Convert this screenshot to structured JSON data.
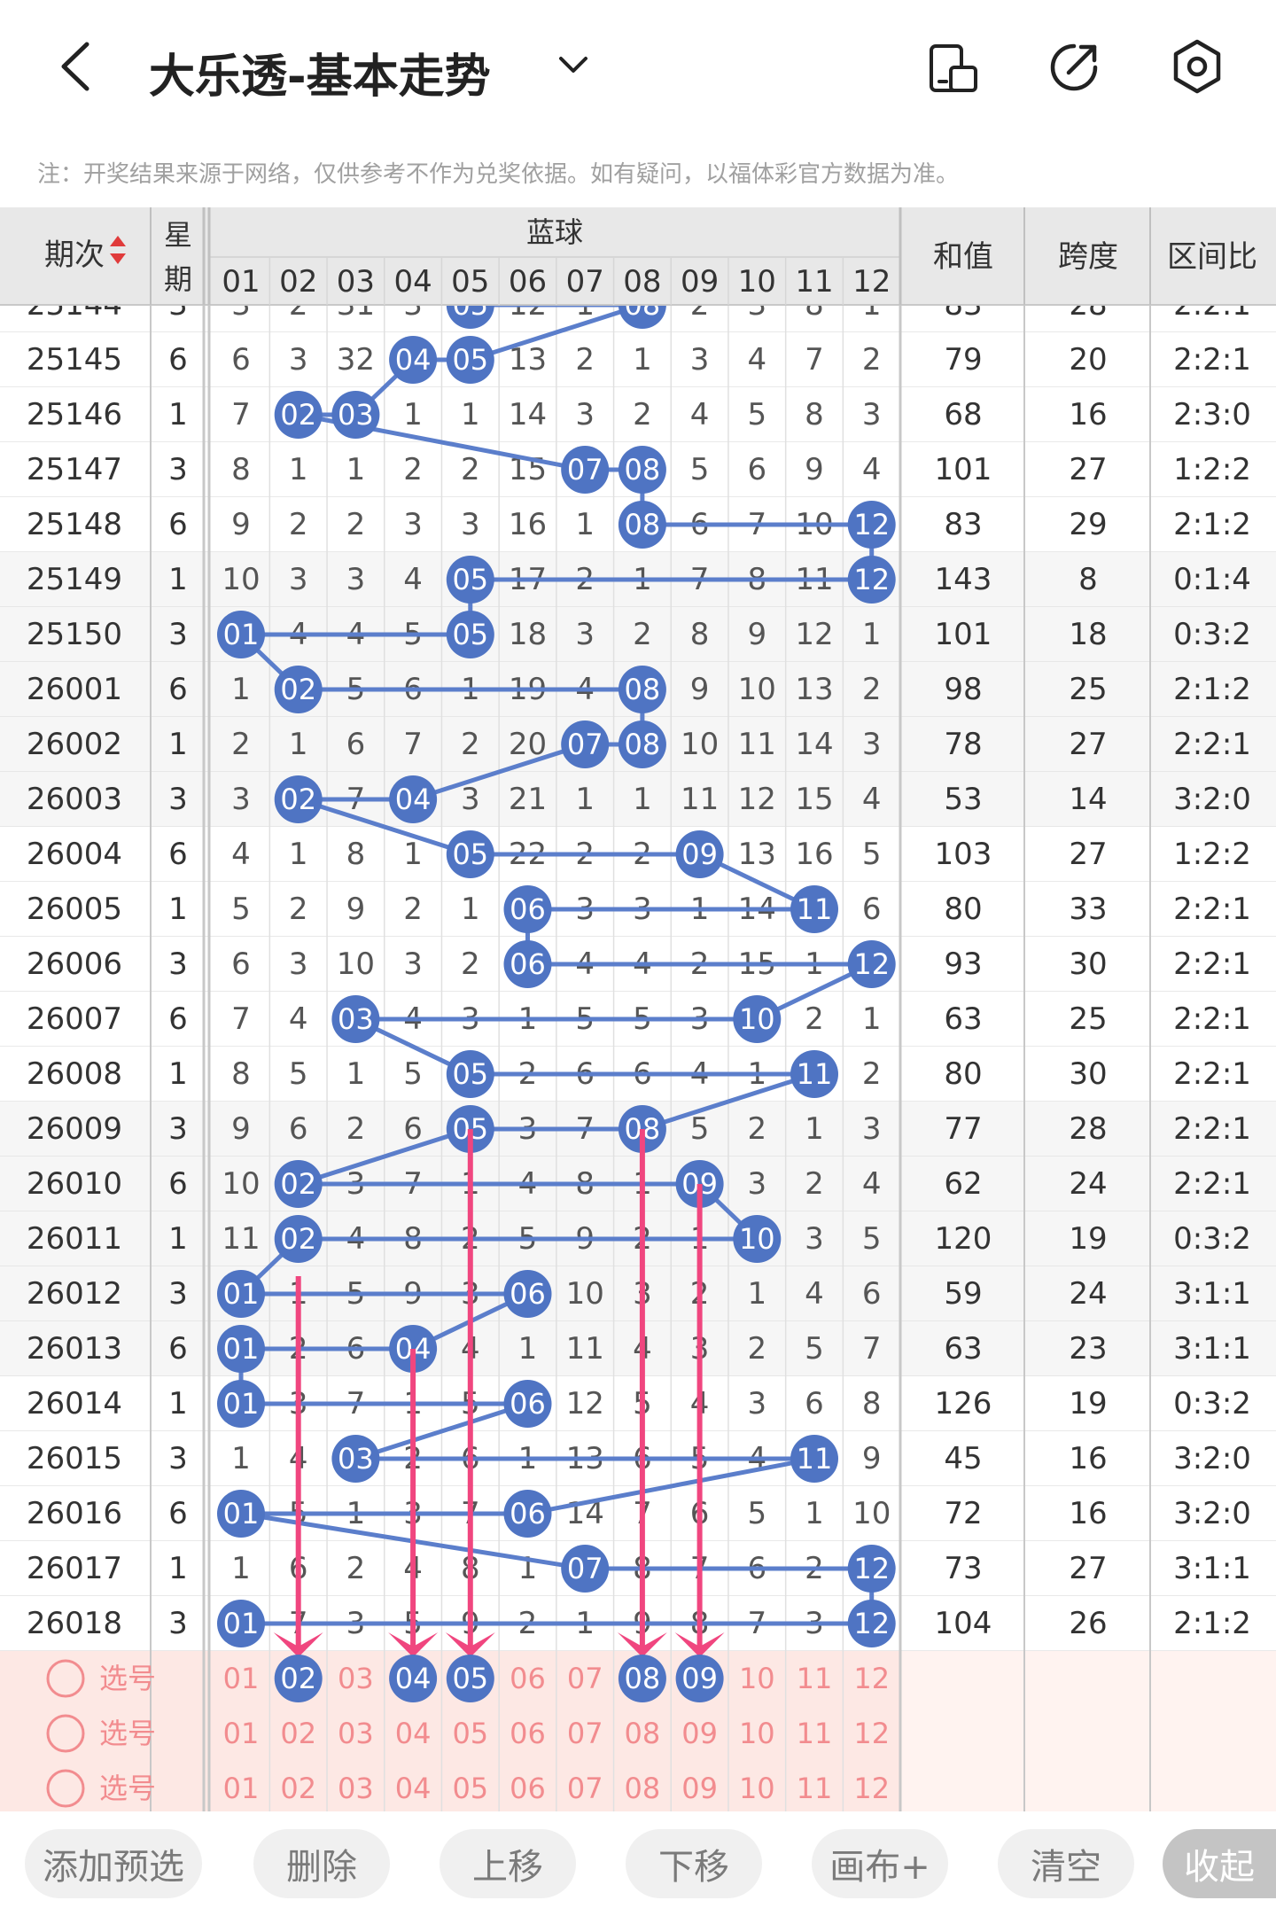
{
  "header": {
    "title": "大乐透-基本走势",
    "note": "注：开奖结果来源于网络，仅供参考不作为兑奖依据。如有疑问，以福体彩官方数据为准。"
  },
  "table": {
    "col_headers": {
      "period": "期次",
      "weekday": "星期",
      "blue_group": "蓝球",
      "sum": "和值",
      "span": "跨度",
      "ratio": "区间比"
    },
    "ball_numbers": [
      "01",
      "02",
      "03",
      "04",
      "05",
      "06",
      "07",
      "08",
      "09",
      "10",
      "11",
      "12"
    ],
    "partial_top_row": {
      "period": "25144",
      "weekday": "3",
      "cells": [
        "3",
        "2",
        "31",
        "3",
        "05",
        "12",
        "1",
        "08",
        "2",
        "3",
        "8",
        "1"
      ],
      "hits": [
        5,
        8
      ],
      "sum": "83",
      "span": "28",
      "ratio": "2:2:1"
    },
    "rows": [
      {
        "period": "25145",
        "weekday": "6",
        "cells": [
          "6",
          "3",
          "32",
          "04",
          "05",
          "13",
          "2",
          "1",
          "3",
          "4",
          "7",
          "2"
        ],
        "hits": [
          4,
          5
        ],
        "sum": "79",
        "span": "20",
        "ratio": "2:2:1"
      },
      {
        "period": "25146",
        "weekday": "1",
        "cells": [
          "7",
          "02",
          "03",
          "1",
          "1",
          "14",
          "3",
          "2",
          "4",
          "5",
          "8",
          "3"
        ],
        "hits": [
          2,
          3
        ],
        "sum": "68",
        "span": "16",
        "ratio": "2:3:0"
      },
      {
        "period": "25147",
        "weekday": "3",
        "cells": [
          "8",
          "1",
          "1",
          "2",
          "2",
          "15",
          "07",
          "08",
          "5",
          "6",
          "9",
          "4"
        ],
        "hits": [
          7,
          8
        ],
        "sum": "101",
        "span": "27",
        "ratio": "1:2:2"
      },
      {
        "period": "25148",
        "weekday": "6",
        "cells": [
          "9",
          "2",
          "2",
          "3",
          "3",
          "16",
          "1",
          "08",
          "6",
          "7",
          "10",
          "12"
        ],
        "hits": [
          8,
          12
        ],
        "sum": "83",
        "span": "29",
        "ratio": "2:1:2"
      },
      {
        "period": "25149",
        "weekday": "1",
        "cells": [
          "10",
          "3",
          "3",
          "4",
          "05",
          "17",
          "2",
          "1",
          "7",
          "8",
          "11",
          "12"
        ],
        "hits": [
          5,
          12
        ],
        "sum": "143",
        "span": "8",
        "ratio": "0:1:4"
      },
      {
        "period": "25150",
        "weekday": "3",
        "cells": [
          "01",
          "4",
          "4",
          "5",
          "05",
          "18",
          "3",
          "2",
          "8",
          "9",
          "12",
          "1"
        ],
        "hits": [
          1,
          5
        ],
        "sum": "101",
        "span": "18",
        "ratio": "0:3:2"
      },
      {
        "period": "26001",
        "weekday": "6",
        "cells": [
          "1",
          "02",
          "5",
          "6",
          "1",
          "19",
          "4",
          "08",
          "9",
          "10",
          "13",
          "2"
        ],
        "hits": [
          2,
          8
        ],
        "sum": "98",
        "span": "25",
        "ratio": "2:1:2"
      },
      {
        "period": "26002",
        "weekday": "1",
        "cells": [
          "2",
          "1",
          "6",
          "7",
          "2",
          "20",
          "07",
          "08",
          "10",
          "11",
          "14",
          "3"
        ],
        "hits": [
          7,
          8
        ],
        "sum": "78",
        "span": "27",
        "ratio": "2:2:1"
      },
      {
        "period": "26003",
        "weekday": "3",
        "cells": [
          "3",
          "02",
          "7",
          "04",
          "3",
          "21",
          "1",
          "1",
          "11",
          "12",
          "15",
          "4"
        ],
        "hits": [
          2,
          4
        ],
        "sum": "53",
        "span": "14",
        "ratio": "3:2:0"
      },
      {
        "period": "26004",
        "weekday": "6",
        "cells": [
          "4",
          "1",
          "8",
          "1",
          "05",
          "22",
          "2",
          "2",
          "09",
          "13",
          "16",
          "5"
        ],
        "hits": [
          5,
          9
        ],
        "sum": "103",
        "span": "27",
        "ratio": "1:2:2"
      },
      {
        "period": "26005",
        "weekday": "1",
        "cells": [
          "5",
          "2",
          "9",
          "2",
          "1",
          "06",
          "3",
          "3",
          "1",
          "14",
          "11",
          "6"
        ],
        "hits": [
          6,
          11
        ],
        "sum": "80",
        "span": "33",
        "ratio": "2:2:1"
      },
      {
        "period": "26006",
        "weekday": "3",
        "cells": [
          "6",
          "3",
          "10",
          "3",
          "2",
          "06",
          "4",
          "4",
          "2",
          "15",
          "1",
          "12"
        ],
        "hits": [
          6,
          12
        ],
        "sum": "93",
        "span": "30",
        "ratio": "2:2:1"
      },
      {
        "period": "26007",
        "weekday": "6",
        "cells": [
          "7",
          "4",
          "03",
          "4",
          "3",
          "1",
          "5",
          "5",
          "3",
          "10",
          "2",
          "1"
        ],
        "hits": [
          3,
          10
        ],
        "sum": "63",
        "span": "25",
        "ratio": "2:2:1"
      },
      {
        "period": "26008",
        "weekday": "1",
        "cells": [
          "8",
          "5",
          "1",
          "5",
          "05",
          "2",
          "6",
          "6",
          "4",
          "1",
          "11",
          "2"
        ],
        "hits": [
          5,
          11
        ],
        "sum": "80",
        "span": "30",
        "ratio": "2:2:1"
      },
      {
        "period": "26009",
        "weekday": "3",
        "cells": [
          "9",
          "6",
          "2",
          "6",
          "05",
          "3",
          "7",
          "08",
          "5",
          "2",
          "1",
          "3"
        ],
        "hits": [
          5,
          8
        ],
        "sum": "77",
        "span": "28",
        "ratio": "2:2:1"
      },
      {
        "period": "26010",
        "weekday": "6",
        "cells": [
          "10",
          "02",
          "3",
          "7",
          "1",
          "4",
          "8",
          "1",
          "09",
          "3",
          "2",
          "4"
        ],
        "hits": [
          2,
          9
        ],
        "sum": "62",
        "span": "24",
        "ratio": "2:2:1"
      },
      {
        "period": "26011",
        "weekday": "1",
        "cells": [
          "11",
          "02",
          "4",
          "8",
          "2",
          "5",
          "9",
          "2",
          "1",
          "10",
          "3",
          "5"
        ],
        "hits": [
          2,
          10
        ],
        "sum": "120",
        "span": "19",
        "ratio": "0:3:2"
      },
      {
        "period": "26012",
        "weekday": "3",
        "cells": [
          "01",
          "1",
          "5",
          "9",
          "3",
          "06",
          "10",
          "3",
          "2",
          "1",
          "4",
          "6"
        ],
        "hits": [
          1,
          6
        ],
        "sum": "59",
        "span": "24",
        "ratio": "3:1:1"
      },
      {
        "period": "26013",
        "weekday": "6",
        "cells": [
          "01",
          "2",
          "6",
          "04",
          "4",
          "1",
          "11",
          "4",
          "3",
          "2",
          "5",
          "7"
        ],
        "hits": [
          1,
          4
        ],
        "sum": "63",
        "span": "23",
        "ratio": "3:1:1"
      },
      {
        "period": "26014",
        "weekday": "1",
        "cells": [
          "01",
          "3",
          "7",
          "1",
          "5",
          "06",
          "12",
          "5",
          "4",
          "3",
          "6",
          "8"
        ],
        "hits": [
          1,
          6
        ],
        "sum": "126",
        "span": "19",
        "ratio": "0:3:2"
      },
      {
        "period": "26015",
        "weekday": "3",
        "cells": [
          "1",
          "4",
          "03",
          "2",
          "6",
          "1",
          "13",
          "6",
          "5",
          "4",
          "11",
          "9"
        ],
        "hits": [
          3,
          11
        ],
        "sum": "45",
        "span": "16",
        "ratio": "3:2:0"
      },
      {
        "period": "26016",
        "weekday": "6",
        "cells": [
          "01",
          "5",
          "1",
          "3",
          "7",
          "06",
          "14",
          "7",
          "6",
          "5",
          "1",
          "10"
        ],
        "hits": [
          1,
          6
        ],
        "sum": "72",
        "span": "16",
        "ratio": "3:2:0"
      },
      {
        "period": "26017",
        "weekday": "1",
        "cells": [
          "1",
          "6",
          "2",
          "4",
          "8",
          "1",
          "07",
          "8",
          "7",
          "6",
          "2",
          "12"
        ],
        "hits": [
          7,
          12
        ],
        "sum": "73",
        "span": "27",
        "ratio": "3:1:1"
      },
      {
        "period": "26018",
        "weekday": "3",
        "cells": [
          "01",
          "7",
          "3",
          "5",
          "9",
          "2",
          "1",
          "9",
          "8",
          "7",
          "3",
          "12"
        ],
        "hits": [
          1,
          12
        ],
        "sum": "104",
        "span": "26",
        "ratio": "2:1:2"
      }
    ],
    "pick_rows": [
      {
        "label": "选号",
        "selected": [
          2,
          4,
          5,
          8,
          9
        ]
      },
      {
        "label": "选号",
        "selected": []
      },
      {
        "label": "选号",
        "selected": []
      }
    ],
    "projections": [
      {
        "from": 2,
        "to": 2
      },
      {
        "from": 4,
        "to": 4
      },
      {
        "from": 5,
        "to": 5
      },
      {
        "from": 8,
        "to": 8
      },
      {
        "from": 9,
        "to": 9
      }
    ]
  },
  "bottom_bar": [
    "添加预选",
    "删除",
    "上移",
    "下移",
    "画布+",
    "清空",
    "收起"
  ],
  "colors": {
    "ball": "#4f74c3",
    "line": "#5b7ecb",
    "arrow": "#f0467f",
    "pick_bg": "#fde8e4",
    "pick_text": "#f28c8f",
    "header_bg": "#e8e8e8",
    "sort_up": "#e03b3b",
    "sort_down": "#e03b3b"
  }
}
